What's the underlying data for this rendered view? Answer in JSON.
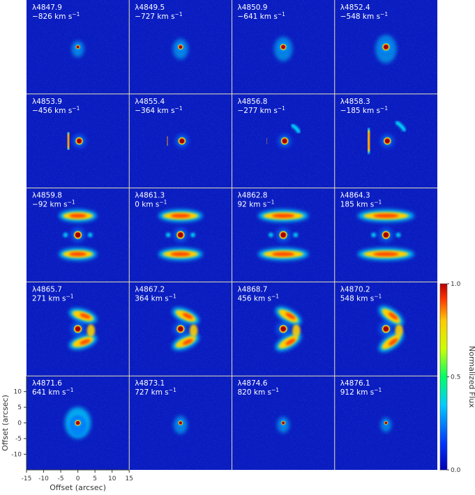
{
  "chart_data": {
    "type": "heatmap",
    "xlabel": "Offset (arcsec)",
    "ylabel": "Offset (arcsec)",
    "xlim": [
      -15,
      15
    ],
    "ylim": [
      -15,
      15
    ],
    "x_ticks": [
      "-15",
      "-10",
      "-5",
      "0",
      "5",
      "10",
      "15"
    ],
    "y_ticks": [
      "10",
      "5",
      "0",
      "-5",
      "-10"
    ],
    "colorbar": {
      "label": "Normalized Flux",
      "range": [
        0.0,
        1.0
      ],
      "ticks": [
        "1.0",
        "0.5",
        "0.0"
      ],
      "colormap": [
        "#0000b8",
        "#0033ff",
        "#00ccff",
        "#00ff66",
        "#ccff00",
        "#ffcc00",
        "#ff3300",
        "#b80000"
      ]
    },
    "grid_line_color": "#e8e4b4",
    "panels": [
      {
        "wavelength": "λ4847.9",
        "velocity": "−826 km s",
        "unit_exp": "−1",
        "structure": "core"
      },
      {
        "wavelength": "λ4849.5",
        "velocity": "−727 km s",
        "unit_exp": "−1",
        "structure": "core"
      },
      {
        "wavelength": "λ4850.9",
        "velocity": "−641 km s",
        "unit_exp": "−1",
        "structure": "core"
      },
      {
        "wavelength": "λ4852.4",
        "velocity": "−548 km s",
        "unit_exp": "−1",
        "structure": "core"
      },
      {
        "wavelength": "λ4853.9",
        "velocity": "−456 km s",
        "unit_exp": "−1",
        "structure": "arc"
      },
      {
        "wavelength": "λ4855.4",
        "velocity": "−364 km s",
        "unit_exp": "−1",
        "structure": "arc"
      },
      {
        "wavelength": "λ4856.8",
        "velocity": "−277 km s",
        "unit_exp": "−1",
        "structure": "arc"
      },
      {
        "wavelength": "λ4858.3",
        "velocity": "−185 km s",
        "unit_exp": "−1",
        "structure": "arc"
      },
      {
        "wavelength": "λ4859.8",
        "velocity": "−92 km s",
        "unit_exp": "−1",
        "structure": "ring"
      },
      {
        "wavelength": "λ4861.3",
        "velocity": "0 km s",
        "unit_exp": "−1",
        "structure": "ring"
      },
      {
        "wavelength": "λ4862.8",
        "velocity": "92 km s",
        "unit_exp": "−1",
        "structure": "ring"
      },
      {
        "wavelength": "λ4864.3",
        "velocity": "185 km s",
        "unit_exp": "−1",
        "structure": "ring"
      },
      {
        "wavelength": "λ4865.7",
        "velocity": "271 km s",
        "unit_exp": "−1",
        "structure": "spiral"
      },
      {
        "wavelength": "λ4867.2",
        "velocity": "364 km s",
        "unit_exp": "−1",
        "structure": "spiral"
      },
      {
        "wavelength": "λ4868.7",
        "velocity": "456 km s",
        "unit_exp": "−1",
        "structure": "spiral"
      },
      {
        "wavelength": "λ4870.2",
        "velocity": "548 km s",
        "unit_exp": "−1",
        "structure": "spiral"
      },
      {
        "wavelength": "λ4871.6",
        "velocity": "641 km s",
        "unit_exp": "−1",
        "structure": "blob"
      },
      {
        "wavelength": "λ4873.1",
        "velocity": "727 km s",
        "unit_exp": "−1",
        "structure": "core"
      },
      {
        "wavelength": "λ4874.6",
        "velocity": "820 km s",
        "unit_exp": "−1",
        "structure": "core"
      },
      {
        "wavelength": "λ4876.1",
        "velocity": "912 km s",
        "unit_exp": "−1",
        "structure": "core"
      }
    ]
  }
}
